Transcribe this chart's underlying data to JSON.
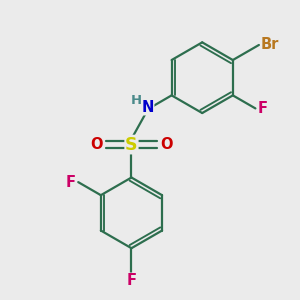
{
  "background_color": "#ebebeb",
  "bond_color": "#2d6e4e",
  "bond_width": 1.6,
  "atom_colors": {
    "Br": "#b87820",
    "F_upper": "#cc0066",
    "F_lower1": "#cc0066",
    "F_lower2": "#cc0066",
    "N": "#0000cc",
    "H": "#4a8a8a",
    "S": "#cccc00",
    "O": "#cc0000"
  },
  "font_size": 10.5,
  "fig_width": 3.0,
  "fig_height": 3.0,
  "dpi": 100,
  "xlim": [
    -3.2,
    4.2
  ],
  "ylim": [
    -4.2,
    3.0
  ]
}
